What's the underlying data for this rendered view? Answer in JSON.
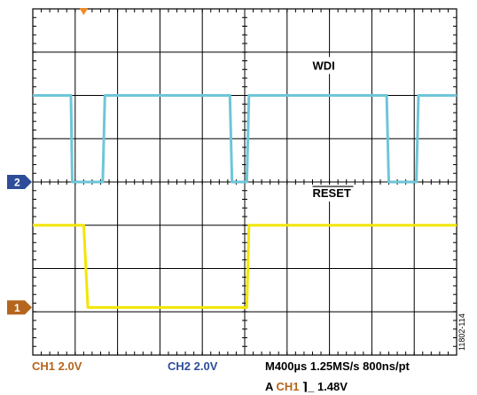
{
  "colors": {
    "ch1_trace": "#f2e600",
    "ch2_trace": "#6ec6d8",
    "ch1_label": "#b5651d",
    "ch2_label": "#2e4d99",
    "grid": "#000000",
    "background": "#ffffff"
  },
  "markers": {
    "trigger_marker_icon": "orange-triangle-down",
    "ch1_marker": "1",
    "ch2_marker": "2"
  },
  "chart_data": {
    "type": "line",
    "title": "",
    "xlabel": "",
    "ylabel": "",
    "grid": true,
    "divisions": {
      "x": 10,
      "y": 8
    },
    "x_unit": "div",
    "y_unit": "div",
    "xlim": [
      0,
      10
    ],
    "ylim": [
      -4,
      4
    ],
    "series": [
      {
        "name": "WDI",
        "color": "#6ec6d8",
        "points": [
          [
            0.0,
            2.0
          ],
          [
            0.9,
            2.0
          ],
          [
            0.93,
            0.0
          ],
          [
            1.65,
            0.0
          ],
          [
            1.7,
            2.0
          ],
          [
            4.65,
            2.0
          ],
          [
            4.7,
            0.0
          ],
          [
            5.05,
            0.0
          ],
          [
            5.1,
            2.0
          ],
          [
            8.35,
            2.0
          ],
          [
            8.4,
            0.0
          ],
          [
            9.05,
            0.0
          ],
          [
            9.1,
            2.0
          ],
          [
            10.0,
            2.0
          ]
        ]
      },
      {
        "name": "RESET",
        "color": "#f2e600",
        "points": [
          [
            0.0,
            -1.0
          ],
          [
            1.2,
            -1.0
          ],
          [
            1.3,
            -2.9
          ],
          [
            5.05,
            -2.9
          ],
          [
            5.1,
            -1.0
          ],
          [
            10.0,
            -1.0
          ]
        ]
      }
    ],
    "annotations": [
      {
        "text": "WDI",
        "x": 6.6,
        "y": 2.6,
        "series": "WDI"
      },
      {
        "text": "RESET",
        "x": 6.6,
        "y": -0.35,
        "series": "RESET",
        "overline": true
      }
    ],
    "channel_offsets": {
      "ch1": -2.9,
      "ch2": 0.0
    }
  },
  "readouts": {
    "ch1_setting": "CH1  2.0V",
    "ch2_setting": "CH2  2.0V",
    "timebase": "M400µs 1.25MS/s  800ns/pt",
    "trigger_prefix": "A",
    "trigger_channel": "CH1",
    "trigger_slope": "⌉_",
    "trigger_level": "1.48V",
    "figure_id": "11802-114"
  }
}
